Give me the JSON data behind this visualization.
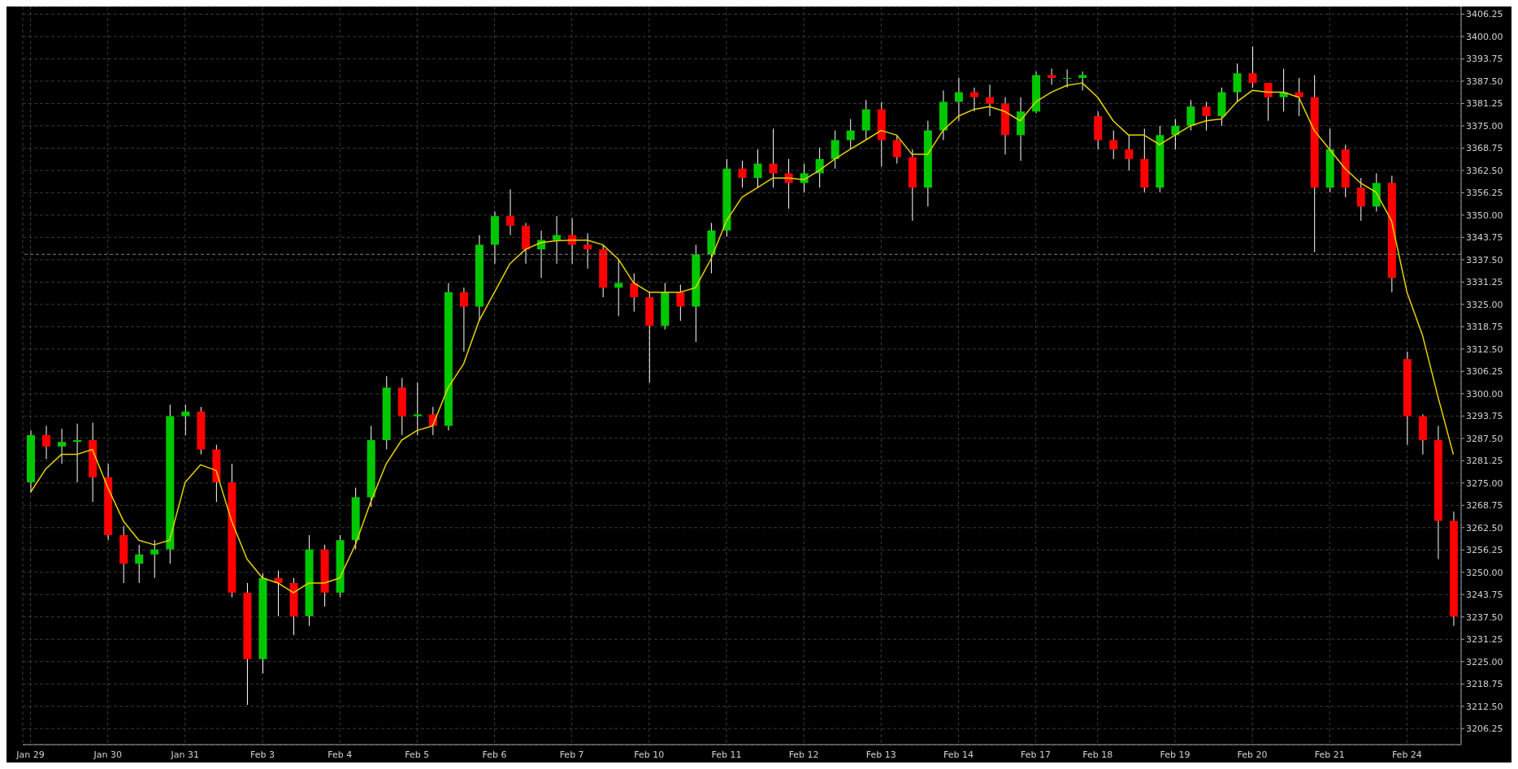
{
  "chart_data": {
    "type": "candlestick",
    "categories": [
      "Jan 29",
      null,
      null,
      null,
      null,
      "Jan 30",
      null,
      null,
      null,
      null,
      "Jan 31",
      null,
      null,
      null,
      null,
      "Feb 3",
      null,
      null,
      null,
      null,
      "Feb 4",
      null,
      null,
      null,
      null,
      "Feb 5",
      null,
      null,
      null,
      null,
      "Feb 6",
      null,
      null,
      null,
      null,
      "Feb 7",
      null,
      null,
      null,
      null,
      "Feb 10",
      null,
      null,
      null,
      null,
      "Feb 11",
      null,
      null,
      null,
      null,
      "Feb 12",
      null,
      null,
      null,
      null,
      "Feb 13",
      null,
      null,
      null,
      null,
      "Feb 14",
      null,
      null,
      null,
      null,
      "Feb 17",
      null,
      null,
      null,
      "Feb 18",
      null,
      null,
      null,
      null,
      "Feb 19",
      null,
      null,
      null,
      null,
      "Feb 20",
      null,
      null,
      null,
      null,
      "Feb 21",
      null,
      null,
      null,
      null,
      "Feb 24",
      null,
      null,
      null
    ],
    "ohlc": [
      [
        3275.2,
        3289.7,
        3272.4,
        3288.4
      ],
      [
        3288.4,
        3291.0,
        3281.7,
        3285.2
      ],
      [
        3285.2,
        3290.2,
        3280.4,
        3286.5
      ],
      [
        3286.5,
        3291.6,
        3275.2,
        3287.0
      ],
      [
        3287.0,
        3291.9,
        3269.7,
        3276.6
      ],
      [
        3276.6,
        3280.4,
        3259.0,
        3260.4
      ],
      [
        3260.4,
        3263.0,
        3247.0,
        3252.4
      ],
      [
        3252.4,
        3257.7,
        3247.0,
        3255.0
      ],
      [
        3255.0,
        3259.0,
        3248.4,
        3256.4
      ],
      [
        3256.4,
        3296.9,
        3252.4,
        3293.7
      ],
      [
        3293.7,
        3296.9,
        3288.4,
        3295.0
      ],
      [
        3295.0,
        3296.3,
        3283.0,
        3284.4
      ],
      [
        3284.4,
        3285.7,
        3269.7,
        3275.2
      ],
      [
        3275.2,
        3280.4,
        3243.0,
        3244.3
      ],
      [
        3244.3,
        3247.0,
        3212.9,
        3225.7
      ],
      [
        3225.7,
        3249.7,
        3221.7,
        3248.4
      ],
      [
        3248.4,
        3250.5,
        3237.7,
        3247.0
      ],
      [
        3247.0,
        3248.4,
        3232.4,
        3237.7
      ],
      [
        3237.7,
        3260.4,
        3235.0,
        3256.4
      ],
      [
        3256.4,
        3257.7,
        3240.4,
        3244.3
      ],
      [
        3244.3,
        3260.4,
        3243.0,
        3259.0
      ],
      [
        3259.0,
        3273.7,
        3256.4,
        3271.0
      ],
      [
        3271.0,
        3291.0,
        3268.3,
        3287.0
      ],
      [
        3287.0,
        3304.9,
        3284.4,
        3301.7
      ],
      [
        3301.7,
        3304.4,
        3288.4,
        3293.7
      ],
      [
        3293.7,
        3303.1,
        3288.4,
        3294.2
      ],
      [
        3294.2,
        3296.3,
        3288.4,
        3291.0
      ],
      [
        3291.0,
        3331.0,
        3289.7,
        3328.4
      ],
      [
        3328.4,
        3329.7,
        3311.8,
        3324.4
      ],
      [
        3324.4,
        3344.4,
        3320.4,
        3341.7
      ],
      [
        3341.7,
        3351.0,
        3336.4,
        3349.7
      ],
      [
        3349.7,
        3357.2,
        3344.4,
        3347.0
      ],
      [
        3347.0,
        3347.8,
        3336.4,
        3340.4
      ],
      [
        3340.4,
        3345.7,
        3332.4,
        3343.0
      ],
      [
        3343.0,
        3349.7,
        3336.4,
        3344.4
      ],
      [
        3344.4,
        3349.1,
        3336.4,
        3341.7
      ],
      [
        3341.7,
        3344.9,
        3335.0,
        3340.4
      ],
      [
        3340.4,
        3341.7,
        3327.0,
        3329.7
      ],
      [
        3329.7,
        3337.7,
        3321.7,
        3331.0
      ],
      [
        3331.0,
        3333.7,
        3323.0,
        3327.0
      ],
      [
        3327.0,
        3328.4,
        3303.1,
        3319.0
      ],
      [
        3319.0,
        3331.0,
        3318.0,
        3328.4
      ],
      [
        3328.4,
        3330.5,
        3320.4,
        3324.4
      ],
      [
        3324.4,
        3341.7,
        3314.5,
        3339.0
      ],
      [
        3339.0,
        3347.8,
        3333.7,
        3345.7
      ],
      [
        3345.7,
        3365.7,
        3344.0,
        3363.0
      ],
      [
        3363.0,
        3365.2,
        3357.7,
        3360.4
      ],
      [
        3360.4,
        3368.4,
        3357.7,
        3364.4
      ],
      [
        3364.4,
        3374.2,
        3357.7,
        3361.7
      ],
      [
        3361.7,
        3365.7,
        3351.8,
        3359.0
      ],
      [
        3359.0,
        3364.4,
        3356.4,
        3361.7
      ],
      [
        3361.7,
        3368.9,
        3357.7,
        3365.7
      ],
      [
        3365.7,
        3373.7,
        3363.0,
        3371.0
      ],
      [
        3371.0,
        3376.9,
        3368.4,
        3373.7
      ],
      [
        3373.7,
        3382.2,
        3371.0,
        3379.6
      ],
      [
        3379.6,
        3381.7,
        3363.6,
        3371.0
      ],
      [
        3371.0,
        3372.4,
        3364.4,
        3366.2
      ],
      [
        3366.2,
        3368.4,
        3348.4,
        3357.7
      ],
      [
        3357.7,
        3376.4,
        3352.4,
        3373.7
      ],
      [
        3373.7,
        3384.9,
        3371.0,
        3381.7
      ],
      [
        3381.7,
        3388.4,
        3376.4,
        3384.4
      ],
      [
        3384.4,
        3385.7,
        3379.0,
        3383.0
      ],
      [
        3383.0,
        3386.5,
        3377.7,
        3381.2
      ],
      [
        3381.2,
        3383.0,
        3367.0,
        3372.4
      ],
      [
        3372.4,
        3383.0,
        3365.2,
        3379.0
      ],
      [
        3379.0,
        3390.2,
        3378.5,
        3389.2
      ],
      [
        3389.2,
        3391.0,
        3386.5,
        3388.4
      ],
      [
        3388.4,
        3390.8,
        3385.7,
        3388.4
      ],
      [
        3388.4,
        3390.2,
        3384.9,
        3389.2
      ],
      [
        3377.7,
        3379.0,
        3368.4,
        3371.0
      ],
      [
        3371.0,
        3373.7,
        3365.7,
        3368.4
      ],
      [
        3368.4,
        3372.4,
        3362.5,
        3365.7
      ],
      [
        3365.7,
        3374.2,
        3356.4,
        3357.7
      ],
      [
        3357.7,
        3375.0,
        3356.4,
        3372.4
      ],
      [
        3372.4,
        3376.9,
        3368.4,
        3375.0
      ],
      [
        3375.0,
        3382.2,
        3373.7,
        3380.4
      ],
      [
        3380.4,
        3381.7,
        3373.7,
        3377.7
      ],
      [
        3377.7,
        3385.7,
        3375.0,
        3384.4
      ],
      [
        3384.4,
        3392.4,
        3381.7,
        3389.7
      ],
      [
        3389.7,
        3397.2,
        3385.7,
        3387.0
      ],
      [
        3387.0,
        3387.0,
        3376.4,
        3383.0
      ],
      [
        3383.0,
        3391.0,
        3379.0,
        3384.4
      ],
      [
        3384.4,
        3388.4,
        3377.7,
        3383.0
      ],
      [
        3383.0,
        3389.2,
        3339.6,
        3357.7
      ],
      [
        3357.7,
        3374.2,
        3356.4,
        3368.4
      ],
      [
        3368.4,
        3369.7,
        3355.0,
        3357.7
      ],
      [
        3357.7,
        3360.4,
        3348.4,
        3352.4
      ],
      [
        3352.4,
        3361.7,
        3351.0,
        3359.0
      ],
      [
        3359.0,
        3361.0,
        3328.4,
        3332.4
      ],
      [
        3309.7,
        3311.8,
        3285.7,
        3293.7
      ],
      [
        3293.7,
        3294.2,
        3283.0,
        3287.0
      ],
      [
        3287.0,
        3291.0,
        3253.7,
        3264.4
      ],
      [
        3264.4,
        3267.0,
        3235.0,
        3237.7
      ]
    ],
    "series": [
      {
        "type": "line",
        "color": "#e6d400",
        "values": [
          3272.4,
          3279.0,
          3283.0,
          3283.0,
          3284.4,
          3273.7,
          3264.4,
          3259.0,
          3257.7,
          3259.0,
          3275.2,
          3280.1,
          3278.5,
          3264.4,
          3253.7,
          3248.4,
          3247.0,
          3244.3,
          3247.0,
          3247.0,
          3248.4,
          3257.7,
          3269.7,
          3280.4,
          3287.0,
          3289.7,
          3291.0,
          3301.7,
          3308.3,
          3320.4,
          3328.4,
          3336.4,
          3340.4,
          3342.3,
          3342.8,
          3343.0,
          3343.0,
          3341.7,
          3337.7,
          3331.0,
          3328.4,
          3328.4,
          3328.4,
          3329.7,
          3337.7,
          3348.4,
          3355.0,
          3357.7,
          3360.4,
          3360.4,
          3359.9,
          3362.5,
          3365.7,
          3368.4,
          3371.0,
          3373.7,
          3372.4,
          3367.0,
          3367.0,
          3373.7,
          3377.7,
          3379.6,
          3380.4,
          3379.0,
          3376.4,
          3381.7,
          3384.4,
          3386.3,
          3387.0,
          3383.0,
          3376.4,
          3372.4,
          3372.4,
          3369.7,
          3372.4,
          3375.0,
          3376.4,
          3376.9,
          3381.7,
          3384.9,
          3384.4,
          3384.4,
          3383.0,
          3373.7,
          3368.4,
          3363.0,
          3359.0,
          3356.4,
          3348.4,
          3328.4,
          3316.4,
          3299.2,
          3283.0
        ]
      }
    ],
    "ylim": [
      3201.75,
      3408.4
    ],
    "yticks": [
      {
        "value": 3206.25,
        "label": "3206.25"
      },
      {
        "value": 3212.5,
        "label": "3212.50"
      },
      {
        "value": 3218.75,
        "label": "3218.75"
      },
      {
        "value": 3225,
        "label": "3225.00"
      },
      {
        "value": 3231.25,
        "label": "3231.25"
      },
      {
        "value": 3237.5,
        "label": "3237.50"
      },
      {
        "value": 3243.75,
        "label": "3243.75"
      },
      {
        "value": 3250,
        "label": "3250.00"
      },
      {
        "value": 3256.25,
        "label": "3256.25"
      },
      {
        "value": 3262.5,
        "label": "3262.50"
      },
      {
        "value": 3268.75,
        "label": "3268.75"
      },
      {
        "value": 3275,
        "label": "3275.00"
      },
      {
        "value": 3281.25,
        "label": "3281.25"
      },
      {
        "value": 3287.5,
        "label": "3287.50"
      },
      {
        "value": 3293.75,
        "label": "3293.75"
      },
      {
        "value": 3300,
        "label": "3300.00"
      },
      {
        "value": 3306.25,
        "label": "3306.25"
      },
      {
        "value": 3312.5,
        "label": "3312.50"
      },
      {
        "value": 3318.75,
        "label": "3318.75"
      },
      {
        "value": 3325,
        "label": "3325.00"
      },
      {
        "value": 3331.25,
        "label": "3331.25"
      },
      {
        "value": 3337.5,
        "label": "3337.50"
      },
      {
        "value": 3343.75,
        "label": "3343.75"
      },
      {
        "value": 3350,
        "label": "3350.00"
      },
      {
        "value": 3356.25,
        "label": "3356.25"
      },
      {
        "value": 3362.5,
        "label": "3362.50"
      },
      {
        "value": 3368.75,
        "label": "3368.75"
      },
      {
        "value": 3375,
        "label": "3375.00"
      },
      {
        "value": 3381.25,
        "label": "3381.25"
      },
      {
        "value": 3387.5,
        "label": "3387.50"
      },
      {
        "value": 3393.75,
        "label": "3393.75"
      },
      {
        "value": 3400,
        "label": "3400.00"
      },
      {
        "value": 3406.25,
        "label": "3406.25"
      }
    ],
    "grid": true,
    "ref_lines": [
      {
        "axis": "y",
        "value": 3339,
        "color": "#808080",
        "line_style": "dashed"
      }
    ]
  }
}
